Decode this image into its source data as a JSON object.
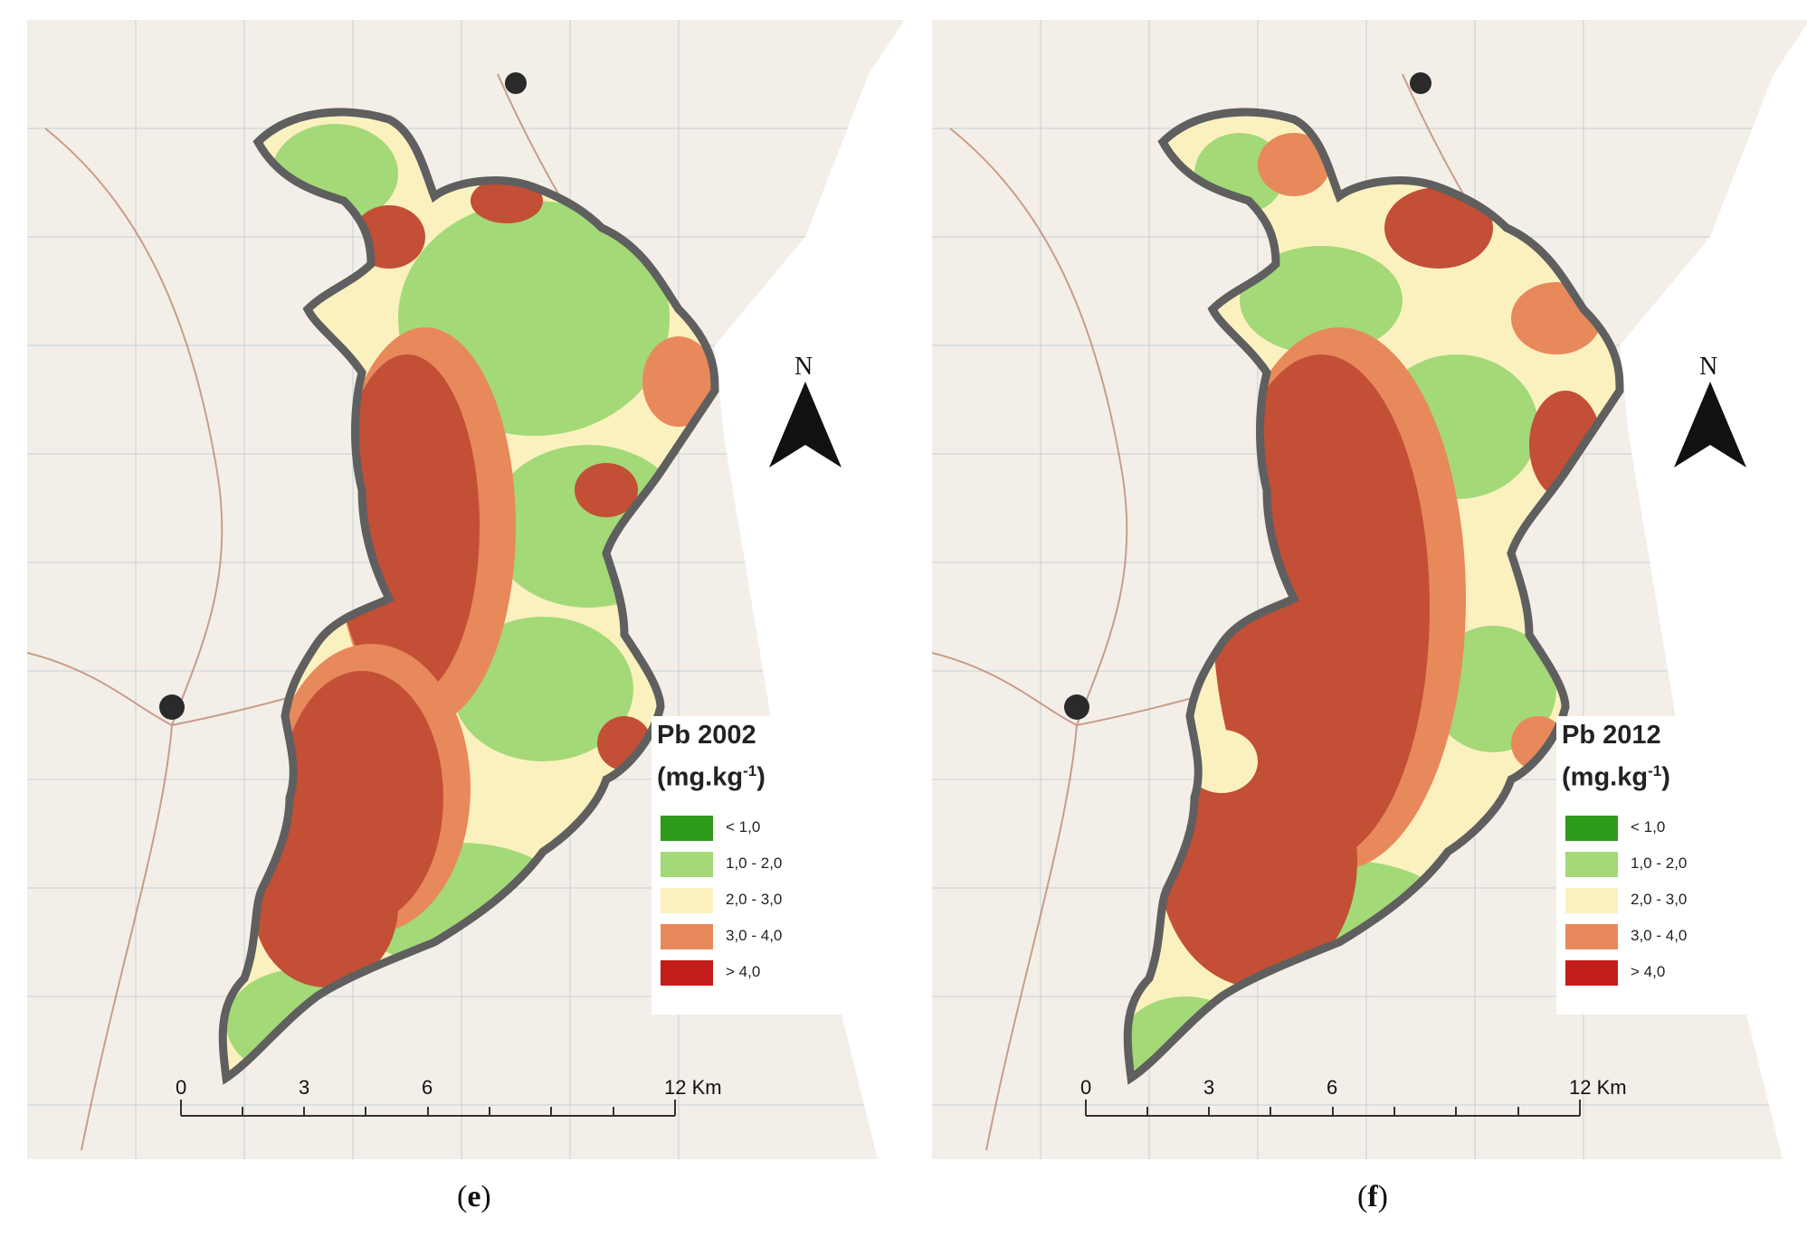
{
  "panels": [
    {
      "id": "e",
      "legend": {
        "title": "Pb 2002",
        "unit_base": "(mg.kg",
        "unit_exp": "-1",
        "unit_close": ")",
        "classes": [
          {
            "label": "< 1,0",
            "color": "#2e9a1a"
          },
          {
            "label": "1,0 - 2,0",
            "color": "#a3d977"
          },
          {
            "label": "2,0 - 3,0",
            "color": "#fbf1bf"
          },
          {
            "label": "3,0 - 4,0",
            "color": "#e8895b"
          },
          {
            "label": "> 4,0",
            "color": "#c41e1a"
          }
        ]
      },
      "north_label": "N",
      "scale": {
        "ticks": [
          "0",
          "3",
          "6",
          "12 Km"
        ]
      },
      "caption": {
        "open": "(",
        "letter": "e",
        "close": ")"
      }
    },
    {
      "id": "f",
      "legend": {
        "title": "Pb 2012",
        "unit_base": "(mg.kg",
        "unit_exp": "-1",
        "unit_close": ")",
        "classes": [
          {
            "label": "< 1,0",
            "color": "#2e9a1a"
          },
          {
            "label": "1,0 - 2,0",
            "color": "#a3d977"
          },
          {
            "label": "2,0 - 3,0",
            "color": "#fbf1bf"
          },
          {
            "label": "3,0 - 4,0",
            "color": "#e8895b"
          },
          {
            "label": "> 4,0",
            "color": "#c41e1a"
          }
        ]
      },
      "north_label": "N",
      "scale": {
        "ticks": [
          "0",
          "3",
          "6",
          "12 Km"
        ]
      },
      "caption": {
        "open": "(",
        "letter": "f",
        "close": ")"
      }
    }
  ],
  "colors": {
    "basemap": "#f3efe8",
    "boundary": "#5f5f5f",
    "road": "#b77a63",
    "grid": "#b9c8d6"
  }
}
